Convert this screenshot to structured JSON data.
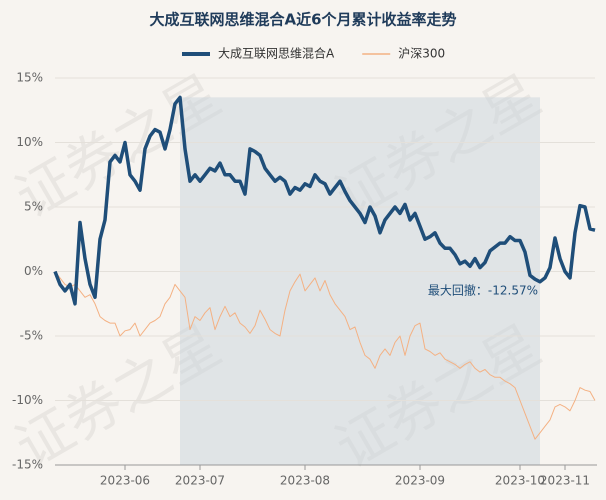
{
  "chart_data": {
    "type": "line",
    "title": "大成互联网思维混合A近6个月累计收益率走势",
    "watermark": "证券之星",
    "annotation": "最大回撤：-12.57%",
    "categories": [
      null,
      null,
      null,
      null,
      null,
      null,
      null,
      null,
      null,
      null,
      null,
      null,
      null,
      null,
      "2023-06",
      null,
      null,
      null,
      null,
      null,
      null,
      null,
      null,
      null,
      null,
      null,
      null,
      null,
      null,
      "2023-07",
      null,
      null,
      null,
      null,
      null,
      null,
      null,
      null,
      null,
      null,
      null,
      null,
      null,
      null,
      null,
      null,
      null,
      null,
      null,
      null,
      "2023-08",
      null,
      null,
      null,
      null,
      null,
      null,
      null,
      null,
      null,
      null,
      null,
      null,
      null,
      null,
      null,
      null,
      null,
      null,
      null,
      null,
      null,
      null,
      "2023-09",
      null,
      null,
      null,
      null,
      null,
      null,
      null,
      null,
      null,
      null,
      null,
      null,
      null,
      null,
      null,
      null,
      null,
      null,
      null,
      "2023-10",
      null,
      null,
      null,
      null,
      null,
      null,
      null,
      null,
      "2023-11",
      null,
      null,
      null,
      null,
      null,
      null
    ],
    "series": [
      {
        "name": "大成互联网思维混合A",
        "color": "#1f4e79",
        "values": [
          0,
          -1,
          -1.5,
          -1,
          -2.5,
          3.8,
          1,
          -1,
          -2,
          2.5,
          4,
          8.5,
          9,
          8.5,
          10,
          7.5,
          7,
          6.3,
          9.5,
          10.5,
          11,
          10.8,
          9.5,
          11,
          13,
          13.5,
          9.5,
          7,
          7.5,
          7,
          7.5,
          8,
          7.8,
          8.4,
          7.5,
          7.5,
          7,
          7,
          6,
          9.5,
          9.3,
          9,
          8,
          7.5,
          7,
          7.3,
          7,
          6,
          6.5,
          6.3,
          6.8,
          6.6,
          7.5,
          7,
          6.8,
          6,
          6.5,
          7,
          6.2,
          5.5,
          5,
          4.5,
          3.8,
          5,
          4.3,
          3,
          4,
          4.5,
          5,
          4.5,
          5.2,
          4,
          4.5,
          3.5,
          2.5,
          2.7,
          3,
          2.2,
          1.8,
          1.8,
          1.3,
          0.6,
          0.8,
          0.4,
          1,
          0.3,
          0.7,
          1.6,
          1.9,
          2.2,
          2.2,
          2.7,
          2.4,
          2.4,
          1.5,
          -0.3,
          -0.6,
          -0.8,
          -0.5,
          0.3,
          2.6,
          1,
          0,
          -0.5,
          3,
          5.1,
          5,
          3.3,
          3.2
        ]
      },
      {
        "name": "沪深300",
        "color": "#f4b183",
        "values": [
          0,
          -0.5,
          -1,
          -1.2,
          -1,
          -1.5,
          -2,
          -1.8,
          -2.5,
          -3.5,
          -3.8,
          -4,
          -4,
          -5,
          -4.6,
          -4.5,
          -4,
          -5,
          -4.5,
          -4,
          -3.8,
          -3.5,
          -2.5,
          -2,
          -1,
          -1.5,
          -2,
          -4.5,
          -3.5,
          -3.8,
          -3.2,
          -2.8,
          -4.5,
          -3.5,
          -2.7,
          -3.5,
          -3.2,
          -4,
          -4.3,
          -4.8,
          -4.2,
          -3,
          -3.7,
          -4.5,
          -4.8,
          -5,
          -3,
          -1.5,
          -0.8,
          -0.2,
          -1.5,
          -1,
          -0.5,
          -1.5,
          -0.7,
          -1.8,
          -2.5,
          -3,
          -3.5,
          -4.5,
          -4.3,
          -5.5,
          -6.5,
          -6.8,
          -7.5,
          -6.5,
          -6,
          -6.5,
          -5.5,
          -5,
          -6.5,
          -5,
          -4.2,
          -4,
          -6,
          -6.2,
          -6.5,
          -6.3,
          -6.8,
          -7,
          -7.2,
          -7.5,
          -7.2,
          -7,
          -7.5,
          -7.8,
          -7.6,
          -8,
          -8.2,
          -8.2,
          -8.5,
          -8.7,
          -9,
          -10,
          -11,
          -12,
          -13,
          -12.5,
          -12,
          -11.5,
          -10.5,
          -10.3,
          -10.5,
          -10.8,
          -10,
          -9,
          -9.2,
          -9.3,
          -10
        ]
      }
    ],
    "ylim": [
      -15,
      15
    ],
    "yticks": [
      {
        "value": 15,
        "label": "15%"
      },
      {
        "value": 10,
        "label": "10%"
      },
      {
        "value": 5,
        "label": "5%"
      },
      {
        "value": 0,
        "label": "0%"
      },
      {
        "value": -5,
        "label": "-5%"
      },
      {
        "value": -10,
        "label": "-10%"
      },
      {
        "value": -15,
        "label": "-15%"
      }
    ],
    "grid": true,
    "legend": "top"
  }
}
